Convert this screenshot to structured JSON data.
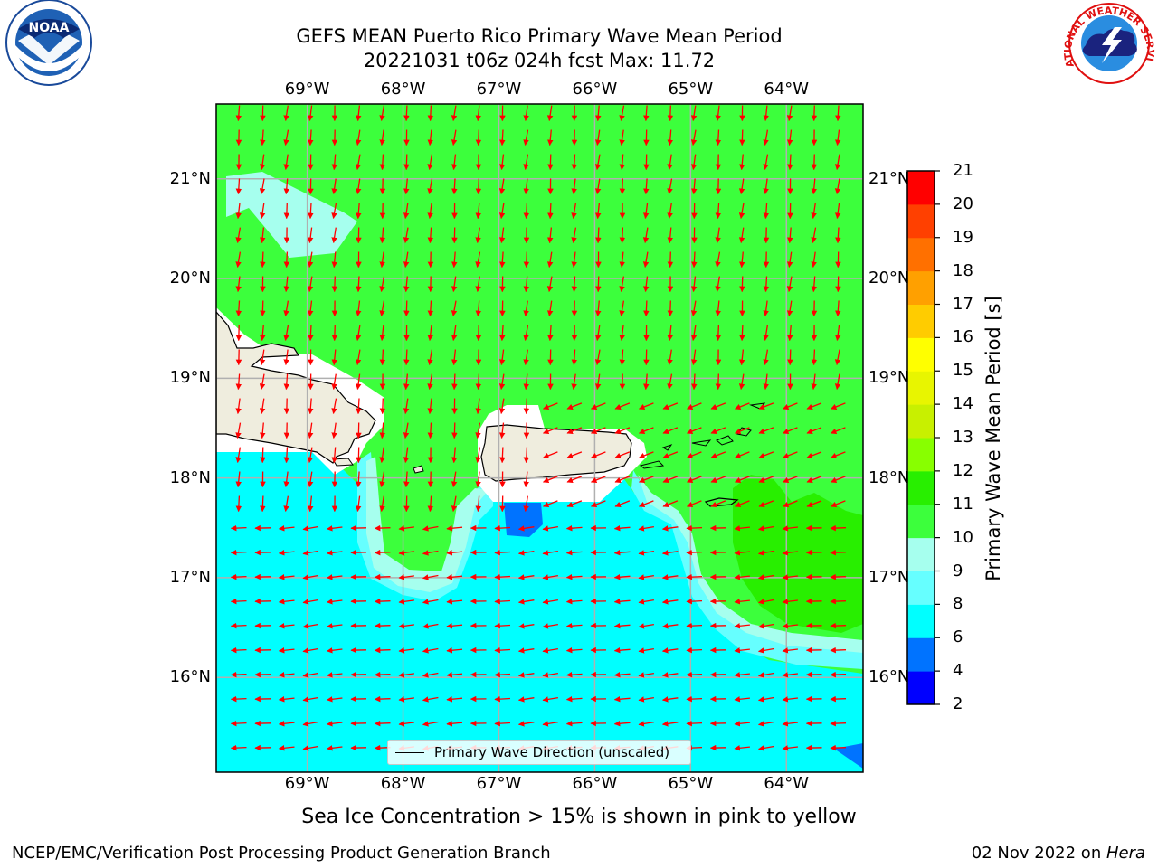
{
  "title": {
    "line1": "GEFS MEAN Puerto Rico Primary Wave Mean Period",
    "line2": "20221031 t06z 024h fcst   Max: 11.72"
  },
  "logos": {
    "left": {
      "name": "noaa-logo",
      "text": "NOAA"
    },
    "right": {
      "name": "nws-logo",
      "text": "NATIONAL WEATHER SERVICE"
    }
  },
  "map": {
    "lon_range": [
      -69.95,
      -63.2
    ],
    "lat_range": [
      15.05,
      21.75
    ],
    "lon_ticks": [
      {
        "value": -69,
        "label": "69°W"
      },
      {
        "value": -68,
        "label": "68°W"
      },
      {
        "value": -67,
        "label": "67°W"
      },
      {
        "value": -66,
        "label": "66°W"
      },
      {
        "value": -65,
        "label": "65°W"
      },
      {
        "value": -64,
        "label": "64°W"
      }
    ],
    "lat_ticks": [
      {
        "value": 21,
        "label": "21°N"
      },
      {
        "value": 20,
        "label": "20°N"
      },
      {
        "value": 19,
        "label": "19°N"
      },
      {
        "value": 18,
        "label": "18°N"
      },
      {
        "value": 17,
        "label": "17°N"
      },
      {
        "value": 16,
        "label": "16°N"
      }
    ],
    "grid": true,
    "arrow_color": "#ff0000",
    "land_color": "#efedde",
    "legend_label": "Primary Wave Direction (unscaled)"
  },
  "colorbar": {
    "label": "Primary Wave Mean Period [s]",
    "ticks": [
      "2",
      "4",
      "6",
      "8",
      "9",
      "10",
      "11",
      "12",
      "13",
      "14",
      "15",
      "16",
      "17",
      "18",
      "19",
      "20",
      "21"
    ],
    "colors": [
      "#0000ff",
      "#0073ff",
      "#00ffff",
      "#66ffff",
      "#a6ffee",
      "#3cff3c",
      "#28ef00",
      "#88ff00",
      "#c8f000",
      "#e8f500",
      "#ffff00",
      "#ffcc00",
      "#ffa000",
      "#ff7000",
      "#ff4000",
      "#ff0000"
    ]
  },
  "footer": {
    "note": "Sea Ice Concentration > 15% is shown in pink to yellow",
    "left": "NCEP/EMC/Verification Post Processing Product Generation Branch",
    "right_date": "02 Nov 2022 on ",
    "right_host": "Hera"
  }
}
